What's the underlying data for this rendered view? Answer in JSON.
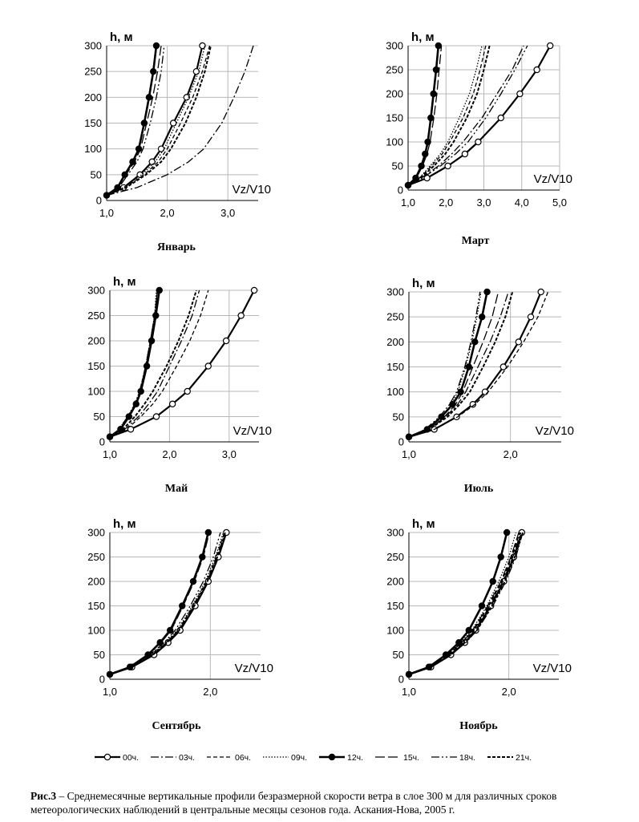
{
  "figure": {
    "caption_label": "Рис.3",
    "caption_text": " – Среднемесячные вертикальные профили безразмерной скорости ветра в слое 300 м для различных сроков метеорологических наблюдений в центральные месяцы сезонов года. Аскания-Нова, 2005 г."
  },
  "legend": [
    "00ч.",
    "03ч.",
    "06ч.",
    "09ч.",
    "12ч.",
    "15ч.",
    "18ч.",
    "21ч."
  ],
  "series_styles": {
    "00ч.": {
      "color": "#000000",
      "dash": "",
      "width": 2.2,
      "marker": "open"
    },
    "03ч.": {
      "color": "#000000",
      "dash": "10,3,2,3",
      "width": 1.3,
      "marker": ""
    },
    "06ч.": {
      "color": "#000000",
      "dash": "5,3",
      "width": 1.3,
      "marker": ""
    },
    "09ч.": {
      "color": "#000000",
      "dash": "1.5,2",
      "width": 1.3,
      "marker": ""
    },
    "12ч.": {
      "color": "#000000",
      "dash": "",
      "width": 2.6,
      "marker": "filled"
    },
    "15ч.": {
      "color": "#000000",
      "dash": "12,4",
      "width": 1.3,
      "marker": ""
    },
    "18ч.": {
      "color": "#000000",
      "dash": "10,3,2,3,2,3",
      "width": 1.3,
      "marker": ""
    },
    "21ч.": {
      "color": "#000000",
      "dash": "4,2",
      "width": 2.0,
      "marker": ""
    }
  },
  "chart_data": [
    {
      "type": "line",
      "title": "Январь",
      "xlabel": "Vz/V10",
      "ylabel": "h, м",
      "xlim": [
        1.0,
        3.5
      ],
      "ylim": [
        0,
        300
      ],
      "xticks": [
        1.0,
        2.0,
        3.0
      ],
      "xtick_labels": [
        "1,0",
        "2,0",
        "3,0"
      ],
      "yticks": [
        0,
        50,
        100,
        150,
        200,
        250,
        300
      ],
      "y": [
        10,
        25,
        50,
        75,
        100,
        150,
        200,
        250,
        300
      ],
      "series": [
        {
          "name": "00ч.",
          "values": [
            1.0,
            1.28,
            1.55,
            1.75,
            1.9,
            2.1,
            2.32,
            2.48,
            2.58
          ]
        },
        {
          "name": "03ч.",
          "values": [
            1.0,
            1.5,
            2.0,
            2.35,
            2.6,
            2.9,
            3.1,
            3.28,
            3.42
          ]
        },
        {
          "name": "06ч.",
          "values": [
            1.0,
            1.3,
            1.62,
            1.85,
            2.0,
            2.22,
            2.42,
            2.58,
            2.7
          ]
        },
        {
          "name": "09ч.",
          "values": [
            1.0,
            1.28,
            1.58,
            1.8,
            1.95,
            2.15,
            2.35,
            2.52,
            2.62
          ]
        },
        {
          "name": "12ч.",
          "values": [
            1.0,
            1.18,
            1.3,
            1.43,
            1.53,
            1.62,
            1.7,
            1.77,
            1.82
          ]
        },
        {
          "name": "15ч.",
          "values": [
            1.0,
            1.18,
            1.32,
            1.46,
            1.56,
            1.66,
            1.76,
            1.84,
            1.9
          ]
        },
        {
          "name": "18ч.",
          "values": [
            1.0,
            1.2,
            1.35,
            1.5,
            1.6,
            1.72,
            1.82,
            1.9,
            1.95
          ]
        },
        {
          "name": "21ч.",
          "values": [
            1.0,
            1.32,
            1.65,
            1.9,
            2.06,
            2.3,
            2.48,
            2.62,
            2.72
          ]
        }
      ]
    },
    {
      "type": "line",
      "title": "Март",
      "xlabel": "Vz/V10",
      "ylabel": "h, м",
      "xlim": [
        1.0,
        5.0
      ],
      "ylim": [
        0,
        300
      ],
      "xticks": [
        1.0,
        2.0,
        3.0,
        4.0,
        5.0
      ],
      "xtick_labels": [
        "1,0",
        "2,0",
        "3,0",
        "4,0",
        "5,0"
      ],
      "yticks": [
        0,
        50,
        100,
        150,
        200,
        250,
        300
      ],
      "y": [
        10,
        25,
        50,
        75,
        100,
        150,
        200,
        250,
        300
      ],
      "series": [
        {
          "name": "00ч.",
          "values": [
            1.0,
            1.5,
            2.05,
            2.5,
            2.85,
            3.45,
            3.95,
            4.4,
            4.75
          ]
        },
        {
          "name": "03ч.",
          "values": [
            1.0,
            1.35,
            1.8,
            2.15,
            2.45,
            2.95,
            3.35,
            3.75,
            4.05
          ]
        },
        {
          "name": "06ч.",
          "values": [
            1.0,
            1.3,
            1.62,
            1.9,
            2.1,
            2.45,
            2.72,
            2.9,
            3.05
          ]
        },
        {
          "name": "09ч.",
          "values": [
            1.0,
            1.3,
            1.58,
            1.85,
            2.05,
            2.35,
            2.62,
            2.8,
            2.95
          ]
        },
        {
          "name": "12ч.",
          "values": [
            1.0,
            1.2,
            1.35,
            1.45,
            1.52,
            1.6,
            1.67,
            1.74,
            1.8
          ]
        },
        {
          "name": "15ч.",
          "values": [
            1.0,
            1.22,
            1.38,
            1.5,
            1.58,
            1.68,
            1.76,
            1.82,
            1.88
          ]
        },
        {
          "name": "18ч.",
          "values": [
            1.0,
            1.38,
            1.85,
            2.25,
            2.58,
            3.05,
            3.45,
            3.82,
            4.15
          ]
        },
        {
          "name": "21ч.",
          "values": [
            1.0,
            1.33,
            1.68,
            1.98,
            2.2,
            2.55,
            2.82,
            3.0,
            3.15
          ]
        }
      ]
    },
    {
      "type": "line",
      "title": "Май",
      "xlabel": "Vz/V10",
      "ylabel": "h, м",
      "xlim": [
        1.0,
        3.5
      ],
      "ylim": [
        0,
        300
      ],
      "xticks": [
        1.0,
        2.0,
        3.0
      ],
      "xtick_labels": [
        "1,0",
        "2,0",
        "3,0"
      ],
      "yticks": [
        0,
        50,
        100,
        150,
        200,
        250,
        300
      ],
      "y": [
        10,
        25,
        50,
        75,
        100,
        150,
        200,
        250,
        300
      ],
      "series": [
        {
          "name": "00ч.",
          "values": [
            1.0,
            1.35,
            1.78,
            2.05,
            2.3,
            2.65,
            2.95,
            3.2,
            3.42
          ]
        },
        {
          "name": "03ч.",
          "values": [
            1.0,
            1.25,
            1.48,
            1.65,
            1.8,
            2.0,
            2.2,
            2.38,
            2.5
          ]
        },
        {
          "name": "06ч.",
          "values": [
            1.0,
            1.28,
            1.52,
            1.72,
            1.88,
            2.12,
            2.34,
            2.52,
            2.65
          ]
        },
        {
          "name": "09ч.",
          "values": [
            1.0,
            1.15,
            1.3,
            1.42,
            1.5,
            1.6,
            1.68,
            1.75,
            1.78
          ]
        },
        {
          "name": "12ч.",
          "values": [
            1.0,
            1.18,
            1.32,
            1.44,
            1.52,
            1.62,
            1.7,
            1.77,
            1.83
          ]
        },
        {
          "name": "15ч.",
          "values": [
            1.0,
            1.17,
            1.31,
            1.43,
            1.51,
            1.6,
            1.68,
            1.75,
            1.8
          ]
        },
        {
          "name": "18ч.",
          "values": [
            1.0,
            1.15,
            1.3,
            1.42,
            1.5,
            1.6,
            1.68,
            1.75,
            1.8
          ]
        },
        {
          "name": "21ч.",
          "values": [
            1.0,
            1.22,
            1.42,
            1.58,
            1.72,
            1.95,
            2.15,
            2.32,
            2.45
          ]
        }
      ]
    },
    {
      "type": "line",
      "title": "Июль",
      "xlabel": "Vz/V10",
      "ylabel": "h, м",
      "xlim": [
        1.0,
        2.5
      ],
      "ylim": [
        0,
        300
      ],
      "xticks": [
        1.0,
        2.0
      ],
      "xtick_labels": [
        "1,0",
        "2,0"
      ],
      "yticks": [
        0,
        50,
        100,
        150,
        200,
        250,
        300
      ],
      "y": [
        10,
        25,
        50,
        75,
        100,
        150,
        200,
        250,
        300
      ],
      "series": [
        {
          "name": "00ч.",
          "values": [
            1.0,
            1.25,
            1.47,
            1.63,
            1.75,
            1.93,
            2.08,
            2.2,
            2.3
          ]
        },
        {
          "name": "03ч.",
          "values": [
            1.0,
            1.2,
            1.36,
            1.48,
            1.56,
            1.68,
            1.8,
            1.9,
            1.98
          ]
        },
        {
          "name": "06ч.",
          "values": [
            1.0,
            1.25,
            1.48,
            1.65,
            1.78,
            1.97,
            2.13,
            2.27,
            2.37
          ]
        },
        {
          "name": "09ч.",
          "values": [
            1.0,
            1.18,
            1.32,
            1.42,
            1.48,
            1.56,
            1.62,
            1.67,
            1.71
          ]
        },
        {
          "name": "12ч.",
          "values": [
            1.0,
            1.18,
            1.32,
            1.43,
            1.51,
            1.59,
            1.65,
            1.72,
            1.77
          ]
        },
        {
          "name": "15ч.",
          "values": [
            1.0,
            1.2,
            1.35,
            1.46,
            1.53,
            1.63,
            1.73,
            1.82,
            1.88
          ]
        },
        {
          "name": "18ч.",
          "values": [
            1.0,
            1.16,
            1.3,
            1.4,
            1.47,
            1.55,
            1.61,
            1.66,
            1.7
          ]
        },
        {
          "name": "21ч.",
          "values": [
            1.0,
            1.2,
            1.38,
            1.5,
            1.6,
            1.73,
            1.85,
            1.95,
            2.02
          ]
        }
      ]
    },
    {
      "type": "line",
      "title": "Сентябрь",
      "xlabel": "Vz/V10",
      "ylabel": "h, м",
      "xlim": [
        1.0,
        2.5
      ],
      "ylim": [
        0,
        300
      ],
      "xticks": [
        1.0,
        2.0
      ],
      "xtick_labels": [
        "1,0",
        "2,0"
      ],
      "yticks": [
        0,
        50,
        100,
        150,
        200,
        250,
        300
      ],
      "y": [
        10,
        25,
        50,
        75,
        100,
        150,
        200,
        250,
        300
      ],
      "series": [
        {
          "name": "00ч.",
          "values": [
            1.0,
            1.22,
            1.44,
            1.58,
            1.7,
            1.85,
            1.98,
            2.08,
            2.16
          ]
        },
        {
          "name": "03ч.",
          "values": [
            1.0,
            1.22,
            1.43,
            1.57,
            1.69,
            1.84,
            1.97,
            2.07,
            2.15
          ]
        },
        {
          "name": "06ч.",
          "values": [
            1.0,
            1.22,
            1.42,
            1.56,
            1.68,
            1.83,
            1.96,
            2.06,
            2.14
          ]
        },
        {
          "name": "09ч.",
          "values": [
            1.0,
            1.21,
            1.41,
            1.55,
            1.67,
            1.82,
            1.95,
            2.05,
            2.13
          ]
        },
        {
          "name": "12ч.",
          "values": [
            1.0,
            1.2,
            1.38,
            1.5,
            1.6,
            1.72,
            1.83,
            1.92,
            1.98
          ]
        },
        {
          "name": "15ч.",
          "values": [
            1.0,
            1.2,
            1.38,
            1.51,
            1.61,
            1.73,
            1.84,
            1.93,
            1.99
          ]
        },
        {
          "name": "18ч.",
          "values": [
            1.0,
            1.21,
            1.4,
            1.54,
            1.65,
            1.8,
            1.93,
            2.03,
            2.1
          ]
        },
        {
          "name": "21ч.",
          "values": [
            1.0,
            1.22,
            1.43,
            1.57,
            1.69,
            1.84,
            1.97,
            2.07,
            2.15
          ]
        }
      ]
    },
    {
      "type": "line",
      "title": "Ноябрь",
      "xlabel": "Vz/V10",
      "ylabel": "h, м",
      "xlim": [
        1.0,
        2.5
      ],
      "ylim": [
        0,
        300
      ],
      "xticks": [
        1.0,
        2.0
      ],
      "xtick_labels": [
        "1,0",
        "2,0"
      ],
      "yticks": [
        0,
        50,
        100,
        150,
        200,
        250,
        300
      ],
      "y": [
        10,
        25,
        50,
        75,
        100,
        150,
        200,
        250,
        300
      ],
      "series": [
        {
          "name": "00ч.",
          "values": [
            1.0,
            1.22,
            1.42,
            1.56,
            1.67,
            1.82,
            1.95,
            2.05,
            2.13
          ]
        },
        {
          "name": "03ч.",
          "values": [
            1.0,
            1.22,
            1.41,
            1.55,
            1.66,
            1.81,
            1.94,
            2.04,
            2.12
          ]
        },
        {
          "name": "06ч.",
          "values": [
            1.0,
            1.21,
            1.4,
            1.54,
            1.65,
            1.8,
            1.93,
            2.03,
            2.11
          ]
        },
        {
          "name": "09ч.",
          "values": [
            1.0,
            1.2,
            1.38,
            1.52,
            1.63,
            1.78,
            1.9,
            2.0,
            2.07
          ]
        },
        {
          "name": "12ч.",
          "values": [
            1.0,
            1.2,
            1.37,
            1.5,
            1.6,
            1.73,
            1.84,
            1.92,
            1.98
          ]
        },
        {
          "name": "15ч.",
          "values": [
            1.0,
            1.21,
            1.39,
            1.53,
            1.64,
            1.79,
            1.92,
            2.02,
            2.1
          ]
        },
        {
          "name": "18ч.",
          "values": [
            1.0,
            1.22,
            1.42,
            1.57,
            1.68,
            1.84,
            1.97,
            2.07,
            2.14
          ]
        },
        {
          "name": "21ч.",
          "values": [
            1.0,
            1.22,
            1.42,
            1.56,
            1.68,
            1.83,
            1.96,
            2.06,
            2.14
          ]
        }
      ]
    }
  ]
}
